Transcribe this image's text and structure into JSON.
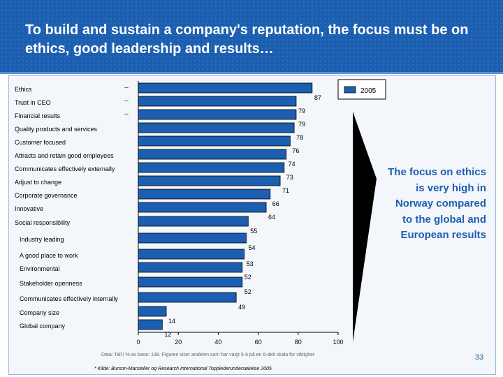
{
  "slide": {
    "title": "To build and sustain a company's reputation, the focus must be on ethics, good leadership and results…",
    "callout": "The focus on ethics is very high in Norway compared to the global and European results",
    "page_number": "33",
    "colors": {
      "header": "#1c5fb0",
      "bar_fill": "#1c5fb0",
      "callout_text": "#1c5fb0",
      "arrow": "#000000"
    }
  },
  "chart_data": {
    "type": "bar",
    "orientation": "horizontal",
    "categories": [
      "Ethics",
      "Trust in CEO",
      "Financial results",
      "Quality products and services",
      "Customer focused",
      "Attracts and retain good employees",
      "Communicates effectively externally",
      "Adjust to change",
      "Corporate governance",
      "Innovative",
      "Social responsibility",
      "Industry leading",
      "A good place to work",
      "Environmental",
      "Stakeholder openness",
      "Communicates effectively internally",
      "Company size",
      "Global company"
    ],
    "series": [
      {
        "name": "2005",
        "values": [
          87,
          79,
          79,
          78,
          76,
          74,
          73,
          71,
          66,
          64,
          55,
          54,
          53,
          52,
          52,
          49,
          14,
          12
        ]
      }
    ],
    "data_labels": [
      "87",
      "79",
      "79",
      "78",
      "76",
      "74",
      "73",
      "71",
      "66",
      "64",
      "55",
      "54",
      "53",
      "52",
      "52",
      "49",
      "14",
      "12"
    ],
    "markers": [
      "--",
      "--",
      "--"
    ],
    "x_ticks": [
      "0",
      "20",
      "40",
      "60",
      "80",
      "100"
    ],
    "xlim": [
      0,
      100
    ],
    "legend_position": "top-right",
    "footnote_data": "Data: Tall i % av base: 138. Figuren viser andelen som har valgt 5-6 på en 6-delt skala for viktighet",
    "footnote_source": "* Kilde: Burson-Marsteller og Research International Topplederundersøkelse 2005"
  }
}
